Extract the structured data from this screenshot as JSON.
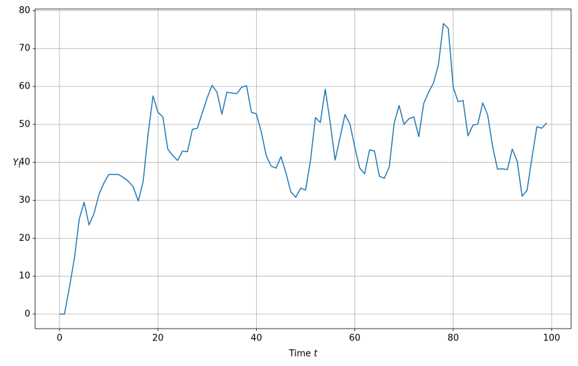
{
  "chart_data": {
    "type": "line",
    "ylabel": "Y",
    "ylabel_subscript": "t",
    "xlabel": "Time",
    "xlabel_variable": "t",
    "x": [
      0,
      1,
      2,
      3,
      4,
      5,
      6,
      7,
      8,
      9,
      10,
      11,
      12,
      13,
      14,
      15,
      16,
      17,
      18,
      19,
      20,
      21,
      22,
      23,
      24,
      25,
      26,
      27,
      28,
      29,
      30,
      31,
      32,
      33,
      34,
      35,
      36,
      37,
      38,
      39,
      40,
      41,
      42,
      43,
      44,
      45,
      46,
      47,
      48,
      49,
      50,
      51,
      52,
      53,
      54,
      55,
      56,
      57,
      58,
      59,
      60,
      61,
      62,
      63,
      64,
      65,
      66,
      67,
      68,
      69,
      70,
      71,
      72,
      73,
      74,
      75,
      76,
      77,
      78,
      79,
      80,
      81,
      82,
      83,
      84,
      85,
      86,
      87,
      88,
      89,
      90,
      91,
      92,
      93,
      94,
      95,
      96,
      97,
      98,
      99
    ],
    "series": [
      {
        "color": "#1f77b4",
        "values": [
          0,
          0,
          7,
          14.5,
          25,
          29.5,
          23.5,
          26.5,
          31.5,
          34.5,
          36.8,
          36.8,
          36.8,
          36,
          35,
          33.5,
          29.8,
          35,
          47.5,
          57.5,
          53.2,
          52,
          43.5,
          41.8,
          40.5,
          43,
          42.8,
          48.7,
          49,
          53,
          57,
          60.3,
          58.5,
          52.7,
          58.5,
          58.3,
          58.1,
          59.8,
          60.2,
          53.2,
          52.8,
          48,
          41.8,
          39,
          38.5,
          41.5,
          37.3,
          32.2,
          30.8,
          33.2,
          32.7,
          40.5,
          51.8,
          50.5,
          59.3,
          50.5,
          40.6,
          46.5,
          52.6,
          50.2,
          44,
          38.5,
          37,
          43.3,
          43,
          36.3,
          35.8,
          38.8,
          50.3,
          55,
          50,
          51.5,
          52,
          46.8,
          55.5,
          58.5,
          61,
          65.8,
          76.6,
          75.3,
          59.8,
          56,
          56.3,
          47,
          49.8,
          50.1,
          55.7,
          52.5,
          44.2,
          38.2,
          38.3,
          38.1,
          43.5,
          40.3,
          31.1,
          32.6,
          41.2,
          49.4,
          49,
          50.4
        ]
      }
    ],
    "xlim": [
      -4.95,
      103.95
    ],
    "xticks": [
      0,
      20,
      40,
      60,
      80,
      100
    ],
    "ylim": [
      -3.83,
      80.43
    ],
    "yticks": [
      0,
      10,
      20,
      30,
      40,
      50,
      60,
      70,
      80
    ],
    "grid": true
  }
}
